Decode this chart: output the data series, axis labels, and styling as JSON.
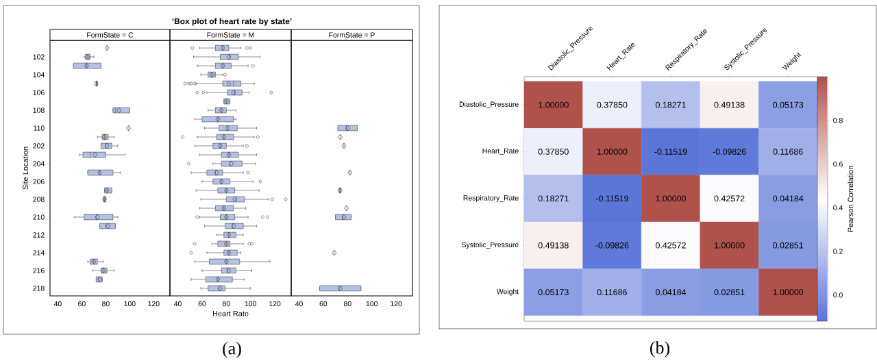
{
  "chart_data": [
    {
      "type": "box",
      "subtitle": "FormState = C",
      "ylabel": "Site Location",
      "orientation": "horizontal",
      "color": "#b3c1e6",
      "categories": [
        null,
        "102",
        null,
        "104",
        null,
        "106",
        null,
        "108",
        null,
        "110",
        null,
        "202",
        null,
        "204",
        null,
        "206",
        null,
        "208",
        null,
        "210",
        null,
        "212",
        null,
        "214",
        null,
        "216",
        null,
        "218"
      ],
      "xlim": [
        33.5,
        133.5
      ],
      "xticks": [
        40,
        60,
        80,
        100,
        120
      ],
      "boxes": [
        {
          "low": 81,
          "q1": 81,
          "median": 81,
          "q3": 81,
          "high": 81,
          "mean": 81
        },
        {
          "low": 62,
          "q1": 63,
          "median": 65,
          "q3": 67,
          "high": 70,
          "mean": 65
        },
        {
          "low": 53,
          "q1": 53,
          "median": 64,
          "q3": 76,
          "high": 76,
          "mean": 64
        },
        null,
        {
          "low": 72,
          "q1": 72,
          "median": 72,
          "q3": 73,
          "high": 73,
          "mean": 72
        },
        null,
        null,
        {
          "low": 86,
          "q1": 86,
          "median": 88,
          "q3": 100,
          "high": 100,
          "mean": 91
        },
        null,
        {
          "low": 99,
          "q1": 99,
          "median": 99,
          "q3": 99,
          "high": 99,
          "mean": 99
        },
        {
          "low": 73,
          "q1": 77,
          "median": 79,
          "q3": 82,
          "high": 87,
          "mean": 79
        },
        {
          "low": 76,
          "q1": 76,
          "median": 80,
          "q3": 85,
          "high": 90,
          "mean": 81
        },
        {
          "low": 58,
          "q1": 61,
          "median": 67,
          "q3": 80,
          "high": 96,
          "mean": 71
        },
        null,
        {
          "low": 65,
          "q1": 65,
          "median": 75,
          "q3": 86,
          "high": 92,
          "mean": 75
        },
        null,
        {
          "low": 79,
          "q1": 79,
          "median": 81,
          "q3": 85,
          "high": 85,
          "mean": 81
        },
        {
          "low": 78,
          "q1": 78,
          "median": 79,
          "q3": 80,
          "high": 80,
          "mean": 79
        },
        null,
        {
          "low": 54,
          "q1": 62,
          "median": 72,
          "q3": 86,
          "high": 90,
          "mean": 73
        },
        {
          "low": 75,
          "q1": 75,
          "median": 80,
          "q3": 88,
          "high": 88,
          "mean": 82
        },
        null,
        null,
        null,
        {
          "low": 65,
          "q1": 67,
          "median": 70,
          "q3": 73,
          "high": 78,
          "mean": 70
        },
        {
          "low": 69,
          "q1": 76,
          "median": 78,
          "q3": 81,
          "high": 87,
          "mean": 78
        },
        {
          "low": 72,
          "q1": 72,
          "median": 74,
          "q3": 77,
          "high": 77,
          "mean": 75
        },
        null
      ]
    },
    {
      "type": "box",
      "title": "‘Box plot of heart rate by state’",
      "subtitle": "FormState = M",
      "xlabel": "Heart Rate",
      "orientation": "horizontal",
      "color": "#b3c1e6",
      "tick_labels": "x",
      "annotations": [
        "(a)"
      ],
      "categories": [
        null,
        "102",
        null,
        "104",
        null,
        "106",
        null,
        "108",
        null,
        "110",
        null,
        "202",
        null,
        "204",
        null,
        "206",
        null,
        "208",
        null,
        "210",
        null,
        "212",
        null,
        "214",
        null,
        "216",
        null,
        "218"
      ],
      "xlim": [
        33.5,
        133.5
      ],
      "xticks": [
        40,
        60,
        80,
        100,
        120
      ],
      "boxes": [
        {
          "low": 58,
          "q1": 71,
          "median": 77,
          "q3": 82,
          "high": 92,
          "mean": 77,
          "outliers": [
            52,
            97,
            100
          ]
        },
        {
          "low": 53,
          "q1": 75,
          "median": 83,
          "q3": 90,
          "high": 108,
          "mean": 82
        },
        {
          "low": 56,
          "q1": 71,
          "median": 77,
          "q3": 84,
          "high": 98,
          "mean": 77,
          "outliers": [
            102
          ]
        },
        {
          "low": 59,
          "q1": 65,
          "median": 68,
          "q3": 71,
          "high": 77,
          "mean": 68,
          "outliers": [
            79
          ]
        },
        {
          "low": 55,
          "q1": 77,
          "median": 86,
          "q3": 92,
          "high": 103,
          "mean": 82,
          "outliers": [
            46,
            49,
            51,
            54
          ]
        },
        {
          "low": 64,
          "q1": 81,
          "median": 87,
          "q3": 93,
          "high": 99,
          "mean": 86,
          "outliers": [
            56,
            61,
            117
          ]
        },
        {
          "low": 78,
          "q1": 78,
          "median": 80,
          "q3": 83,
          "high": 83,
          "mean": 80
        },
        {
          "low": 65,
          "q1": 71,
          "median": 76,
          "q3": 80,
          "high": 88,
          "mean": 76
        },
        {
          "low": 54,
          "q1": 60,
          "median": 73,
          "q3": 86,
          "high": 88,
          "mean": 73
        },
        {
          "low": 62,
          "q1": 74,
          "median": 81,
          "q3": 89,
          "high": 105,
          "mean": 81
        },
        {
          "low": 56,
          "q1": 72,
          "median": 78,
          "q3": 86,
          "high": 103,
          "mean": 78,
          "outliers": [
            44,
            106
          ]
        },
        {
          "low": 54,
          "q1": 69,
          "median": 75,
          "q3": 80,
          "high": 94,
          "mean": 75,
          "outliers": [
            97
          ]
        },
        {
          "low": 58,
          "q1": 76,
          "median": 82,
          "q3": 90,
          "high": 105,
          "mean": 82
        },
        {
          "low": 69,
          "q1": 76,
          "median": 83,
          "q3": 93,
          "high": 104,
          "mean": 84,
          "outliers": [
            49
          ]
        },
        {
          "low": 51,
          "q1": 64,
          "median": 71,
          "q3": 77,
          "high": 94,
          "mean": 72,
          "outliers": [
            98
          ]
        },
        {
          "low": 60,
          "q1": 69,
          "median": 76,
          "q3": 83,
          "high": 102,
          "mean": 76,
          "outliers": [
            108
          ]
        },
        {
          "low": 55,
          "q1": 73,
          "median": 80,
          "q3": 87,
          "high": 107,
          "mean": 80
        },
        {
          "low": 59,
          "q1": 80,
          "median": 88,
          "q3": 95,
          "high": 115,
          "mean": 87,
          "outliers": [
            118,
            129
          ]
        },
        {
          "low": 58,
          "q1": 71,
          "median": 78,
          "q3": 86,
          "high": 96,
          "mean": 78
        },
        {
          "low": 58,
          "q1": 75,
          "median": 80,
          "q3": 87,
          "high": 98,
          "mean": 80,
          "outliers": [
            56,
            110,
            114
          ]
        },
        {
          "low": 62,
          "q1": 79,
          "median": 85,
          "q3": 94,
          "high": 105,
          "mean": 86
        },
        {
          "low": 72,
          "q1": 78,
          "median": 82,
          "q3": 88,
          "high": 94,
          "mean": 82
        },
        {
          "low": 68,
          "q1": 73,
          "median": 80,
          "q3": 83,
          "high": 94,
          "mean": 80,
          "outliers": [
            54,
            99,
            101
          ]
        },
        {
          "low": 64,
          "q1": 78,
          "median": 82,
          "q3": 89,
          "high": 92,
          "mean": 82,
          "outliers": [
            51
          ]
        },
        {
          "low": 54,
          "q1": 66,
          "median": 80,
          "q3": 91,
          "high": 116,
          "mean": 80
        },
        {
          "low": 60,
          "q1": 76,
          "median": 81,
          "q3": 88,
          "high": 101,
          "mean": 82
        },
        {
          "low": 51,
          "q1": 63,
          "median": 73,
          "q3": 85,
          "high": 95,
          "mean": 73
        },
        {
          "low": 59,
          "q1": 65,
          "median": 74,
          "q3": 79,
          "high": 100,
          "mean": 75
        }
      ]
    },
    {
      "type": "box",
      "subtitle": "FormState = P",
      "orientation": "horizontal",
      "color": "#b3c1e6",
      "tick_labels": "x",
      "categories": [
        null,
        "102",
        null,
        "104",
        null,
        "106",
        null,
        "108",
        null,
        "110",
        null,
        "202",
        null,
        "204",
        null,
        "206",
        null,
        "208",
        null,
        "210",
        null,
        "212",
        null,
        "214",
        null,
        "216",
        null,
        "218"
      ],
      "xlim": [
        33.5,
        133.5
      ],
      "xticks": [
        40,
        60,
        80,
        100,
        120
      ],
      "boxes": [
        null,
        null,
        null,
        null,
        null,
        null,
        null,
        null,
        null,
        {
          "low": 72,
          "q1": 72,
          "median": 79,
          "q3": 88,
          "high": 88,
          "mean": 80
        },
        {
          "low": 74,
          "q1": 74,
          "median": 74,
          "q3": 74,
          "high": 74,
          "mean": 74
        },
        {
          "low": 77,
          "q1": 77,
          "median": 77,
          "q3": 77,
          "high": 77,
          "mean": 77
        },
        null,
        null,
        {
          "low": 82,
          "q1": 82,
          "median": 82,
          "q3": 82,
          "high": 82,
          "mean": 82
        },
        null,
        {
          "low": 73,
          "q1": 73,
          "median": 74,
          "q3": 74,
          "high": 74,
          "mean": 74
        },
        null,
        {
          "low": 79,
          "q1": 79,
          "median": 79,
          "q3": 79,
          "high": 79,
          "mean": 79
        },
        {
          "low": 70,
          "q1": 70,
          "median": 76,
          "q3": 83,
          "high": 83,
          "mean": 77
        },
        null,
        null,
        null,
        {
          "low": 69,
          "q1": 69,
          "median": 69,
          "q3": 69,
          "high": 69,
          "mean": 69
        },
        null,
        null,
        null,
        {
          "low": 57,
          "q1": 57,
          "median": 73,
          "q3": 91,
          "high": 91,
          "mean": 74
        }
      ]
    },
    {
      "type": "heatmap",
      "clabel": "Pearson Correlation",
      "annotations": [
        "(b)"
      ],
      "categories": [
        "Diastolic_Pressure",
        "Heart_Rate",
        "Respiratory_Rate",
        "Systolic_Pressure",
        "Weight"
      ],
      "y_categories": [
        "Diastolic_Pressure",
        "Heart_Rate",
        "Respiratory_Rate",
        "Systolic_Pressure",
        "Weight"
      ],
      "cells": [
        [
          1.0,
          0.3785,
          0.18271,
          0.49138,
          0.05173
        ],
        [
          0.3785,
          1.0,
          -0.11519,
          -0.09826,
          0.11686
        ],
        [
          0.18271,
          -0.11519,
          1.0,
          0.42572,
          0.04184
        ],
        [
          0.49138,
          -0.09826,
          0.42572,
          1.0,
          0.02851
        ],
        [
          0.05173,
          0.11686,
          0.04184,
          0.02851,
          1.0
        ]
      ],
      "cell_labels": [
        [
          "1.00000",
          "0.37850",
          "0.18271",
          "0.49138",
          "0.05173"
        ],
        [
          "0.37850",
          "1.00000",
          "-0.11519",
          "-0.09826",
          "0.11686"
        ],
        [
          "0.18271",
          "-0.11519",
          "1.00000",
          "0.42572",
          "0.04184"
        ],
        [
          "0.49138",
          "-0.09826",
          "0.42572",
          "1.00000",
          "0.02851"
        ],
        [
          "0.05173",
          "0.11686",
          "0.04184",
          "0.02851",
          "1.00000"
        ]
      ],
      "clim": [
        -0.12,
        1.0
      ],
      "cticks": [
        {
          "value": 0,
          "label": "0.0"
        },
        0.2,
        0.4,
        0.6,
        0.8
      ]
    }
  ]
}
